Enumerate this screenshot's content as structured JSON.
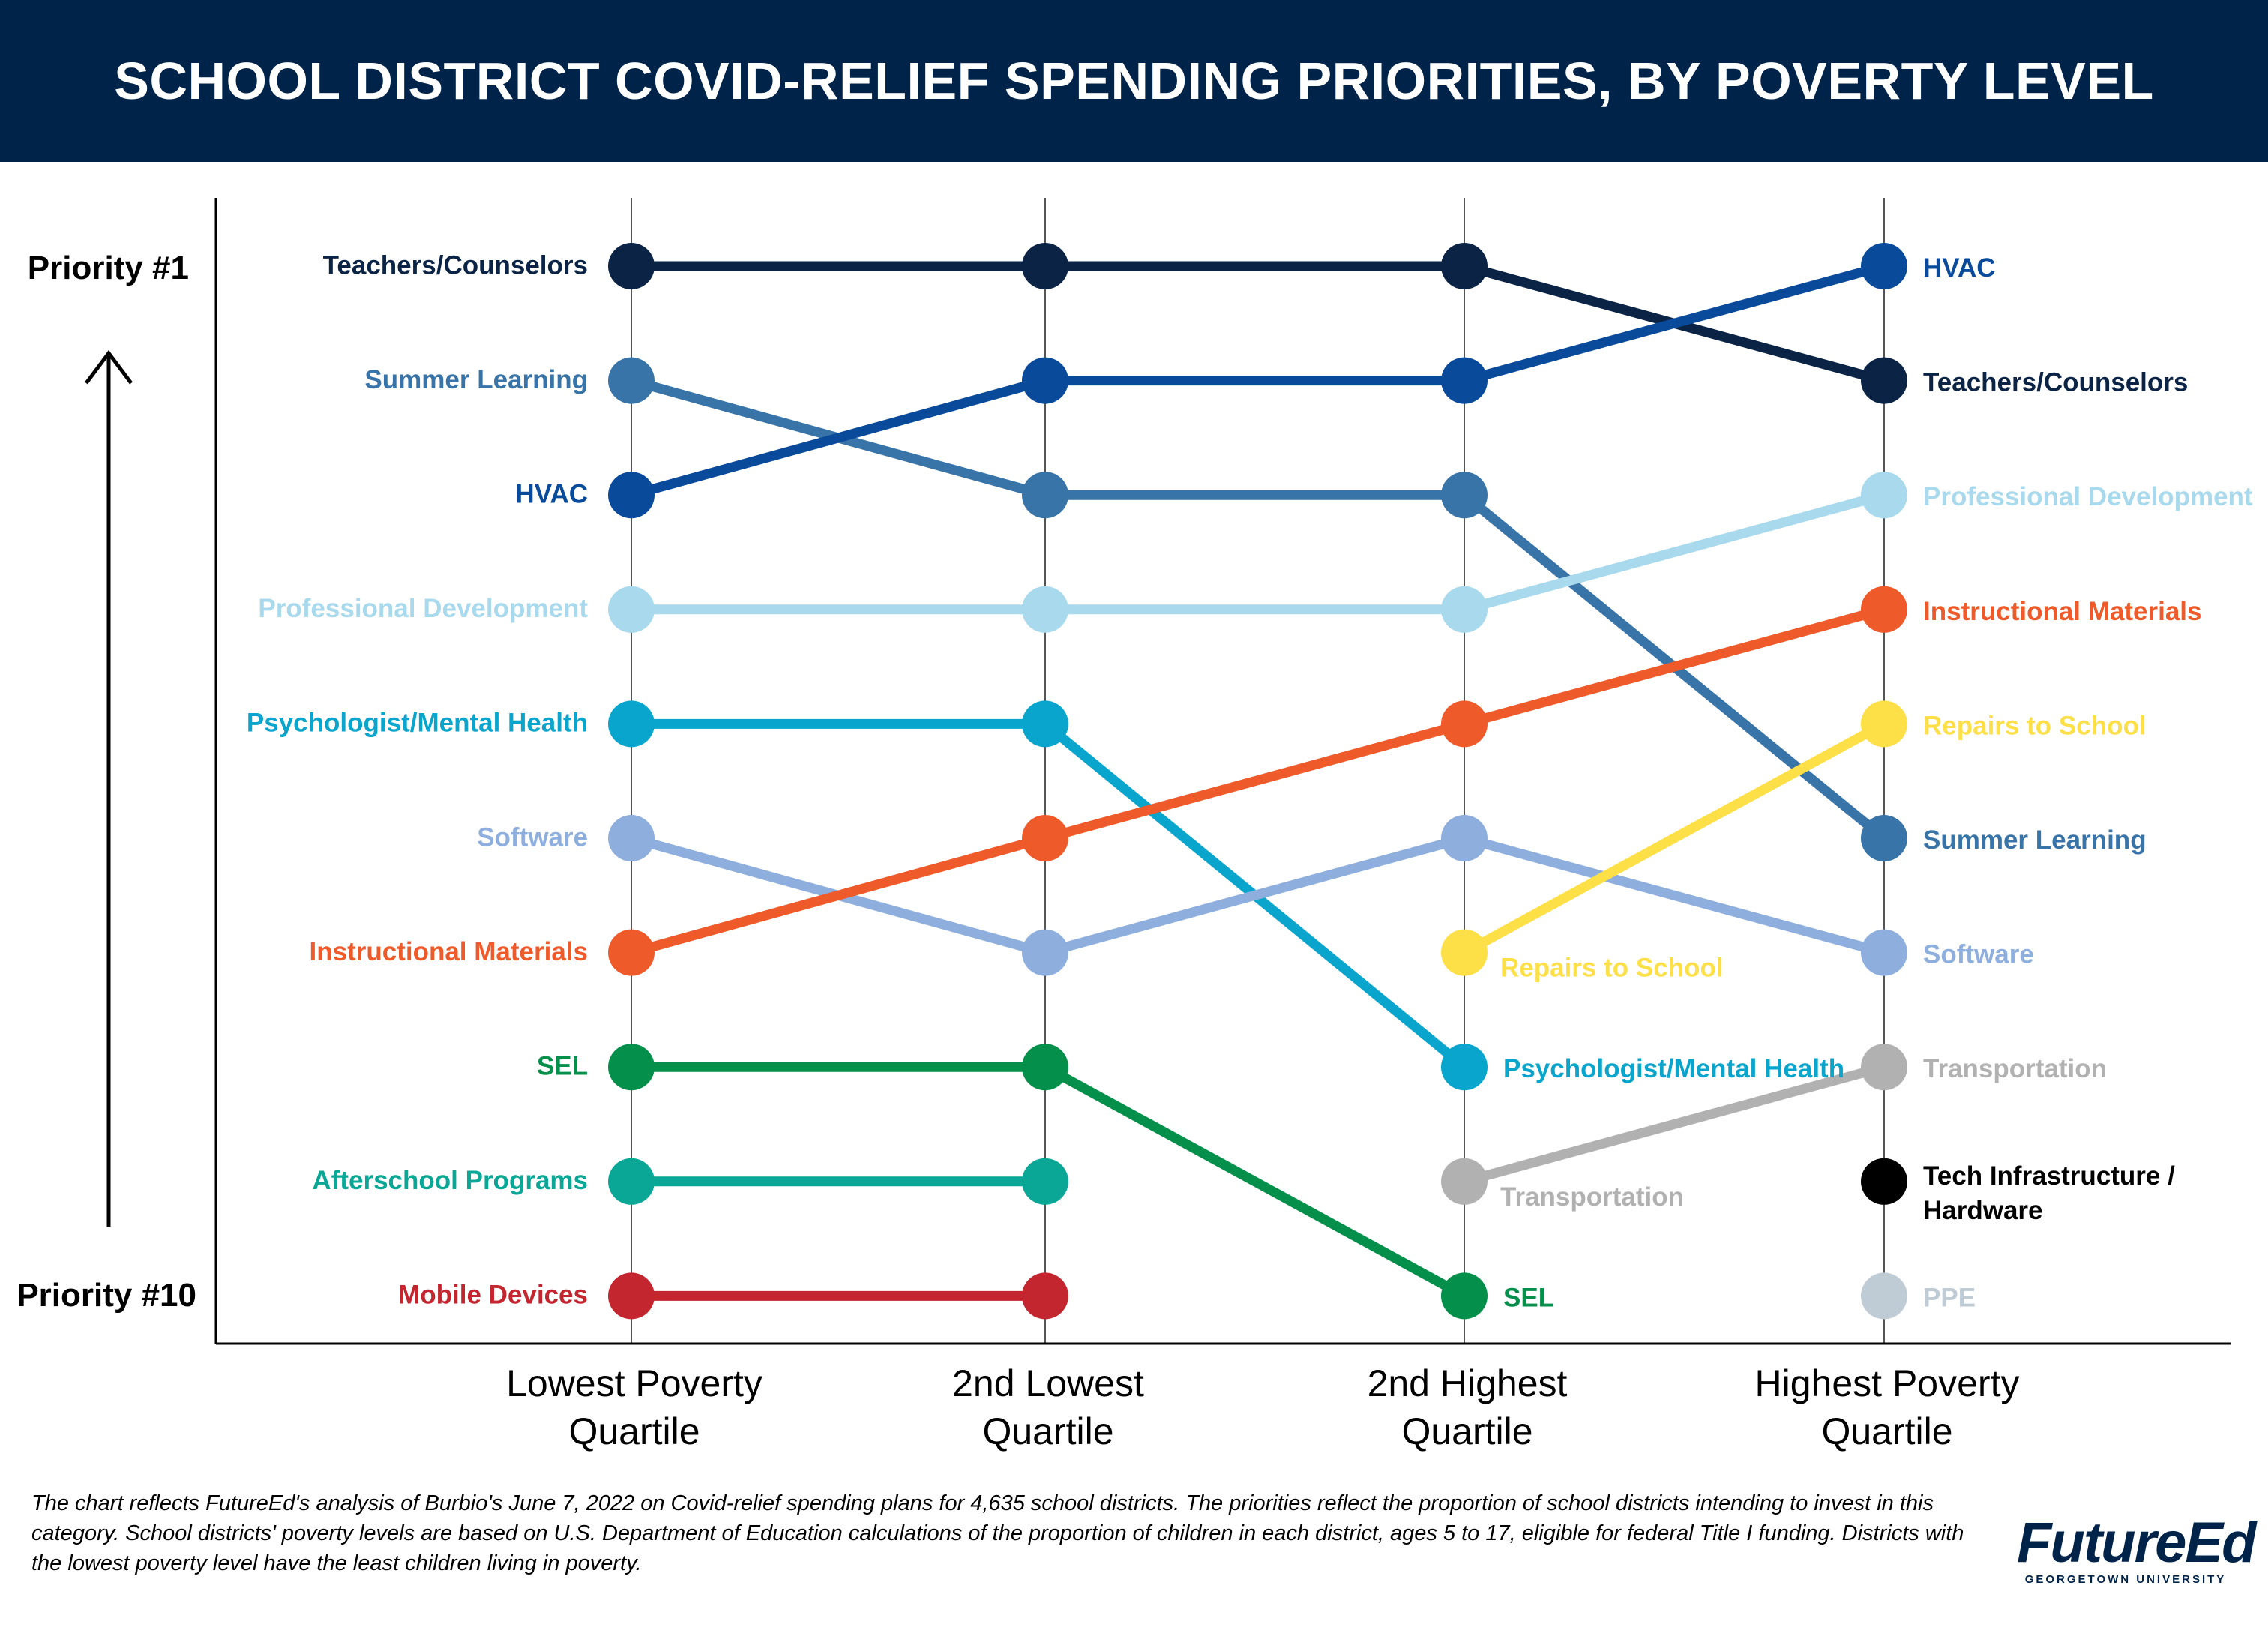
{
  "title": "SCHOOL DISTRICT COVID-RELIEF SPENDING PRIORITIES, BY POVERTY LEVEL",
  "footnote": "The chart reflects FutureEd's analysis of Burbio's June 7, 2022 on Covid-relief spending plans for 4,635 school districts. The priorities reflect the proportion of school districts intending to invest in this category. School districts' poverty levels are based on U.S. Department of Education calculations of the proportion of children in each district, ages 5 to 17, eligible for federal Title I funding. Districts with the lowest poverty level have the least children living in poverty.",
  "logo": {
    "main": "FutureEd",
    "sub": "GEORGETOWN UNIVERSITY"
  },
  "chart_data": {
    "type": "line",
    "subtype": "bump",
    "y_top_label": "Priority #1",
    "y_bottom_label": "Priority #10",
    "ylim": [
      1,
      10
    ],
    "y_reversed": true,
    "grid": "vertical lines at each quartile",
    "categories": [
      [
        "Lowest Poverty",
        "Quartile"
      ],
      [
        "2nd Lowest",
        "Quartile"
      ],
      [
        "2nd Highest",
        "Quartile"
      ],
      [
        "Highest Poverty",
        "Quartile"
      ]
    ],
    "series": [
      {
        "name": "Teachers/Counselors",
        "color": "#0b2345",
        "values": [
          1,
          1,
          1,
          2
        ]
      },
      {
        "name": "Summer Learning",
        "color": "#3874a8",
        "values": [
          2,
          3,
          3,
          6
        ]
      },
      {
        "name": "HVAC",
        "color": "#0a4a9b",
        "values": [
          3,
          2,
          2,
          1
        ]
      },
      {
        "name": "Professional Development",
        "color": "#a8d9ec",
        "values": [
          4,
          4,
          4,
          3
        ]
      },
      {
        "name": "Psychologist/Mental Health",
        "color": "#0aa5cc",
        "values": [
          5,
          5,
          8,
          null
        ]
      },
      {
        "name": "Software",
        "color": "#8eaede",
        "values": [
          6,
          7,
          6,
          7
        ]
      },
      {
        "name": "Instructional Materials",
        "color": "#ef5a2a",
        "values": [
          7,
          6,
          5,
          4
        ]
      },
      {
        "name": "SEL",
        "color": "#04904a",
        "values": [
          8,
          8,
          10,
          null
        ]
      },
      {
        "name": "Afterschool Programs",
        "color": "#0aa797",
        "values": [
          9,
          9,
          null,
          null
        ]
      },
      {
        "name": "Mobile Devices",
        "color": "#c4262f",
        "values": [
          10,
          10,
          null,
          null
        ]
      },
      {
        "name": "Repairs to School",
        "color": "#fde047",
        "values": [
          null,
          null,
          7,
          5
        ]
      },
      {
        "name": "Transportation",
        "color": "#b1b1b1",
        "values": [
          null,
          null,
          9,
          8
        ]
      },
      {
        "name": "Tech Infrastructure / Hardware",
        "color": "#000000",
        "values": [
          null,
          null,
          null,
          9
        ]
      },
      {
        "name": "PPE",
        "color": "#bfccd6",
        "values": [
          null,
          null,
          null,
          10
        ]
      }
    ],
    "labels": [
      {
        "text": "Teachers/Counselors",
        "col": 0,
        "rank": 1,
        "side": "left"
      },
      {
        "text": "Summer Learning",
        "col": 0,
        "rank": 2,
        "side": "left"
      },
      {
        "text": "HVAC",
        "col": 0,
        "rank": 3,
        "side": "left"
      },
      {
        "text": "Professional Development",
        "col": 0,
        "rank": 4,
        "side": "left"
      },
      {
        "text": "Psychologist/Mental Health",
        "col": 0,
        "rank": 5,
        "side": "left"
      },
      {
        "text": "Software",
        "col": 0,
        "rank": 6,
        "side": "left"
      },
      {
        "text": "Instructional Materials",
        "col": 0,
        "rank": 7,
        "side": "left"
      },
      {
        "text": "SEL",
        "col": 0,
        "rank": 8,
        "side": "left"
      },
      {
        "text": "Afterschool Programs",
        "col": 0,
        "rank": 9,
        "side": "left"
      },
      {
        "text": "Mobile Devices",
        "col": 0,
        "rank": 10,
        "side": "left"
      },
      {
        "text": "Repairs to School",
        "col": 2,
        "rank": 7,
        "side": "right-below"
      },
      {
        "text": "Psychologist/Mental Health",
        "col": 2,
        "rank": 8,
        "side": "right"
      },
      {
        "text": "Transportation",
        "col": 2,
        "rank": 9,
        "side": "right-below"
      },
      {
        "text": "SEL",
        "col": 2,
        "rank": 10,
        "side": "right"
      },
      {
        "text": "HVAC",
        "col": 3,
        "rank": 1,
        "side": "right"
      },
      {
        "text": "Teachers/Counselors",
        "col": 3,
        "rank": 2,
        "side": "right"
      },
      {
        "text": "Professional Development",
        "col": 3,
        "rank": 3,
        "side": "right"
      },
      {
        "text": "Instructional Materials",
        "col": 3,
        "rank": 4,
        "side": "right"
      },
      {
        "text": "Repairs to School",
        "col": 3,
        "rank": 5,
        "side": "right"
      },
      {
        "text": "Summer Learning",
        "col": 3,
        "rank": 6,
        "side": "right"
      },
      {
        "text": "Software",
        "col": 3,
        "rank": 7,
        "side": "right"
      },
      {
        "text": "Transportation",
        "col": 3,
        "rank": 8,
        "side": "right"
      },
      {
        "text": [
          "Tech Infrastructure /",
          "Hardware"
        ],
        "col": 3,
        "rank": 9,
        "side": "right"
      },
      {
        "text": "PPE",
        "col": 3,
        "rank": 10,
        "side": "right"
      }
    ]
  }
}
